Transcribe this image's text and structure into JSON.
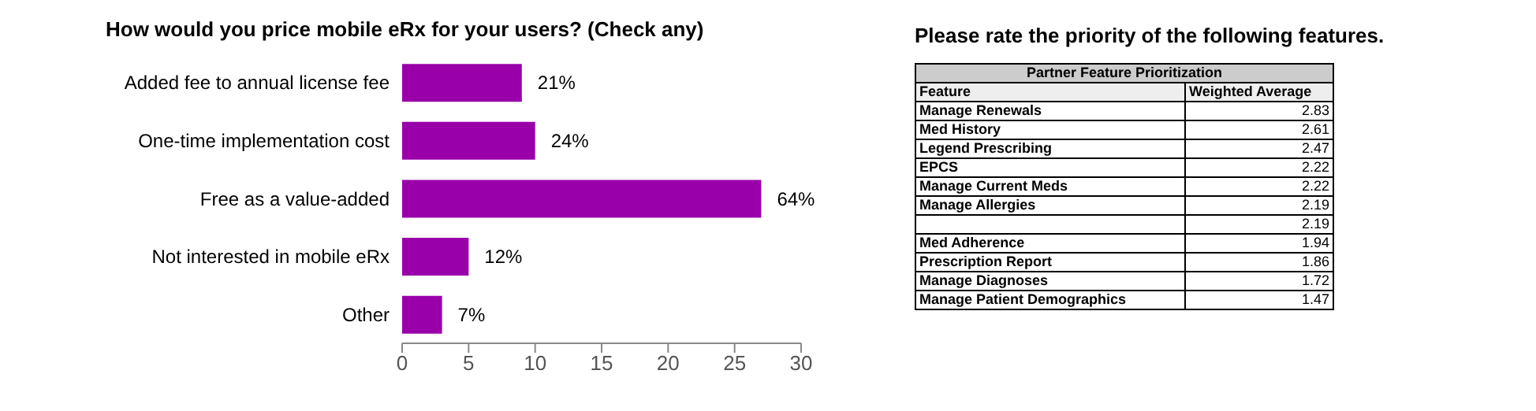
{
  "chart_data": [
    {
      "type": "bar",
      "orientation": "horizontal",
      "title": "How would you price mobile eRx for your users? (Check any)",
      "categories": [
        "Added fee to annual license fee",
        "One-time implementation cost",
        "Free as a value-added",
        "Not interested in mobile eRx",
        "Other"
      ],
      "values": [
        9,
        10,
        27,
        5,
        3
      ],
      "annotations": [
        {
          "text": "21%",
          "x": 9,
          "y": "Added fee to annual license fee"
        },
        {
          "text": "24%",
          "x": 10,
          "y": "One-time implementation cost"
        },
        {
          "text": "64%",
          "x": 27,
          "y": "Free as a value-added"
        },
        {
          "text": "12%",
          "x": 5,
          "y": "Not interested in mobile eRx"
        },
        {
          "text": "7%",
          "x": 3,
          "y": "Other"
        }
      ],
      "color": "#9900aa",
      "xlim": [
        0,
        30
      ],
      "xticks": [
        0,
        5,
        10,
        15,
        20,
        25,
        30
      ]
    },
    {
      "type": "other",
      "title": "Please rate the priority of the following features.",
      "subtitle": "Partner Feature Prioritization",
      "annotations": [
        "Feature",
        "Weighted Average"
      ],
      "categories": [
        "Manage Renewals",
        "Med History",
        "Legend Prescribing",
        "EPCS",
        "Manage Current Meds",
        "Manage Allergies",
        null,
        "Med Adherence",
        "Prescription Report",
        "Manage Diagnoses",
        "Manage Patient Demographics"
      ],
      "values": [
        2.83,
        2.61,
        2.47,
        2.22,
        2.22,
        2.19,
        2.19,
        1.94,
        1.86,
        1.72,
        1.47
      ],
      "data_labels": true
    }
  ]
}
